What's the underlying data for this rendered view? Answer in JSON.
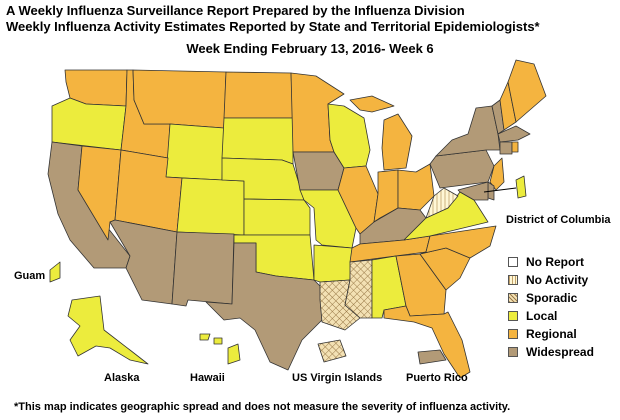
{
  "header": {
    "line1": "A Weekly Influenza Surveillance Report Prepared by the Influenza Division",
    "line2": "Weekly Influenza Activity Estimates Reported by State and Territorial Epidemiologists*",
    "line3": "Week Ending February 13, 2016- Week 6"
  },
  "colors": {
    "no_report": "#ffffff",
    "no_activity": "#fff7d6",
    "sporadic": "#f3e1b4",
    "local": "#ecec3d",
    "regional": "#f4b440",
    "widespread": "#b29a77",
    "border": "#333333"
  },
  "legend": {
    "items": [
      {
        "key": "no_report",
        "label": "No Report"
      },
      {
        "key": "no_activity",
        "label": "No Activity"
      },
      {
        "key": "sporadic",
        "label": "Sporadic"
      },
      {
        "key": "local",
        "label": "Local"
      },
      {
        "key": "regional",
        "label": "Regional"
      },
      {
        "key": "widespread",
        "label": "Widespread"
      }
    ]
  },
  "labels": {
    "dc": "District of Columbia",
    "guam": "Guam",
    "alaska": "Alaska",
    "hawaii": "Hawaii",
    "usvi": "US Virgin Islands",
    "pr": "Puerto Rico"
  },
  "regions": {
    "washington": "regional",
    "oregon": "local",
    "california": "widespread",
    "nevada": "regional",
    "idaho": "regional",
    "montana": "regional",
    "wyoming": "local",
    "utah": "regional",
    "arizona": "widespread",
    "colorado": "local",
    "new_mexico": "widespread",
    "north_dakota": "regional",
    "south_dakota": "local",
    "nebraska": "local",
    "kansas": "local",
    "oklahoma": "local",
    "texas": "widespread",
    "minnesota": "regional",
    "iowa": "widespread",
    "missouri": "local",
    "arkansas": "local",
    "louisiana": "sporadic",
    "wisconsin": "local",
    "illinois": "regional",
    "michigan": "regional",
    "indiana": "regional",
    "ohio": "regional",
    "kentucky": "widespread",
    "tennessee": "regional",
    "mississippi": "sporadic",
    "alabama": "local",
    "georgia": "regional",
    "florida": "regional",
    "south_carolina": "regional",
    "north_carolina": "regional",
    "virginia": "local",
    "west_virginia": "no_activity",
    "pennsylvania": "widespread",
    "new_york": "widespread",
    "vermont": "widespread",
    "new_hampshire": "regional",
    "maine": "regional",
    "massachusetts": "widespread",
    "connecticut": "widespread",
    "rhode_island": "regional",
    "new_jersey": "regional",
    "delaware": "widespread",
    "maryland": "widespread",
    "dc": "local",
    "alaska": "local",
    "hawaii": "local",
    "guam": "local",
    "usvi": "sporadic",
    "puerto_rico": "widespread"
  },
  "footnote": "*This map indicates geographic spread and does not measure the severity of influenza activity."
}
